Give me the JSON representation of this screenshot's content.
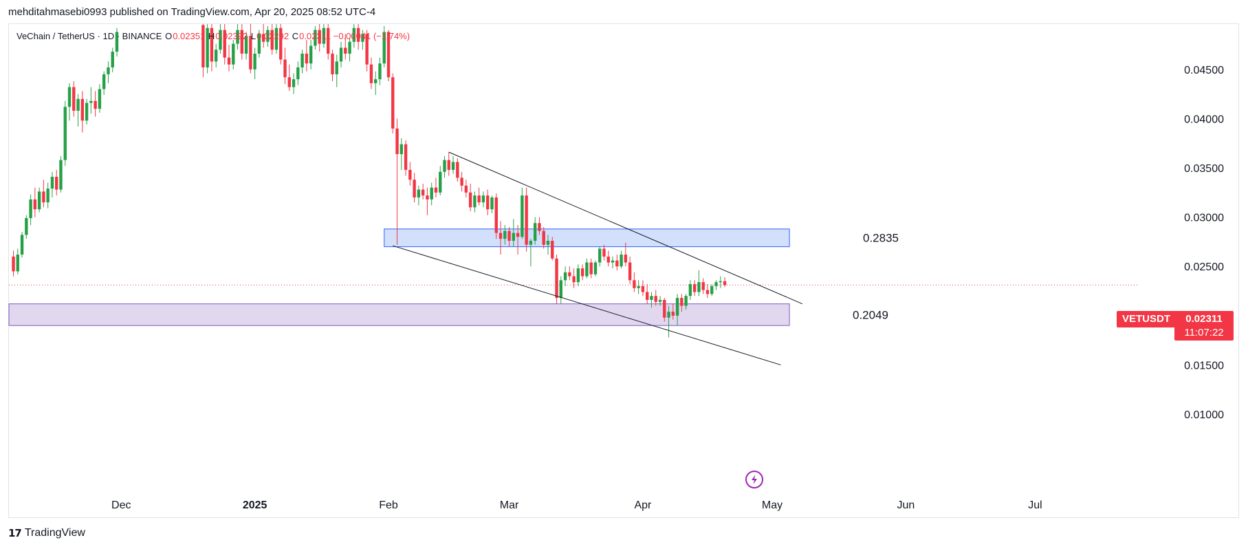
{
  "header": {
    "published": "mehditahmasebi0993 published on TradingView.com, Apr 20, 2025 08:52 UTC-4"
  },
  "legend": {
    "symbol_name": "VeChain / TetherUS · 1D · BINANCE",
    "o_label": "O",
    "o_value": "0.02351",
    "h_label": "H",
    "h_value": "0.02392",
    "l_label": "L",
    "l_value": "0.02292",
    "c_label": "C",
    "c_value": "0.02311",
    "change": "−0.00041 (−1.74%)"
  },
  "price_tag": {
    "ticker": "VETUSDT",
    "price": "0.02311",
    "countdown": "11:07:22"
  },
  "zone_labels": {
    "upper": "0.2835",
    "lower": "0.2049"
  },
  "footer": {
    "brand": "TradingView",
    "logo_text": "17"
  },
  "colors": {
    "up": "#26a047",
    "down": "#f23645",
    "upper_zone_fill": "#d2e0fb",
    "upper_zone_stroke": "#2962ff",
    "lower_zone_fill": "#e1d8f0",
    "lower_zone_stroke": "#7e57c2",
    "trendline": "#131722",
    "last_price_line": "#f23645",
    "flash_icon": "#9c27b0"
  },
  "icons": {
    "flash": "flash-icon"
  },
  "chart_data": {
    "type": "candlestick",
    "symbol": "VETUSDT",
    "interval": "1D",
    "exchange": "BINANCE",
    "y_axis": {
      "ticks": [
        0.045,
        0.04,
        0.035,
        0.03,
        0.025,
        0.02,
        0.015,
        0.01
      ],
      "tick_labels": [
        "0.04500",
        "0.04000",
        "0.03500",
        "0.03000",
        "0.02500",
        "0.02000",
        "0.01500",
        "0.01000"
      ],
      "range": [
        0.0063,
        0.0496
      ],
      "position": "right"
    },
    "x_axis": {
      "tick_labels": [
        "Dec",
        "2025",
        "Feb",
        "Mar",
        "Apr",
        "May",
        "Jun",
        "Jul"
      ],
      "tick_dates": [
        "2024-12-01",
        "2025-01-01",
        "2025-02-01",
        "2025-03-01",
        "2025-04-01",
        "2025-05-01",
        "2025-06-01",
        "2025-07-01"
      ]
    },
    "last_price": 0.02311,
    "zones": [
      {
        "name": "upper",
        "label": "0.2835",
        "from": "2025-01-31",
        "to": "2025-05-05",
        "low": 0.027,
        "high": 0.0288
      },
      {
        "name": "lower",
        "label": "0.2049",
        "from": "2024-11-01",
        "to": "2025-05-05",
        "low": 0.019,
        "high": 0.0212
      }
    ],
    "trendlines": [
      {
        "from": [
          "2025-02-15",
          0.0366
        ],
        "to": [
          "2025-05-08",
          0.0212
        ]
      },
      {
        "from": [
          "2025-02-02",
          0.0271
        ],
        "to": [
          "2025-05-03",
          0.015
        ]
      }
    ],
    "candles": [
      [
        "2024-11-01",
        0.0229,
        0.0245,
        0.0222,
        0.024
      ],
      [
        "2024-11-02",
        0.024,
        0.0258,
        0.0236,
        0.0253
      ],
      [
        "2024-11-03",
        0.0253,
        0.027,
        0.0248,
        0.0264
      ],
      [
        "2024-11-04",
        0.0264,
        0.0279,
        0.0256,
        0.0272
      ],
      [
        "2024-11-05",
        0.0272,
        0.028,
        0.0255,
        0.026
      ],
      [
        "2024-11-06",
        0.026,
        0.0266,
        0.024,
        0.0245
      ],
      [
        "2024-11-07",
        0.0245,
        0.0268,
        0.0242,
        0.0262
      ],
      [
        "2024-11-08",
        0.0262,
        0.0285,
        0.0259,
        0.0282
      ],
      [
        "2024-11-09",
        0.0282,
        0.0302,
        0.0278,
        0.0299
      ],
      [
        "2024-11-10",
        0.0299,
        0.0323,
        0.0292,
        0.0318
      ],
      [
        "2024-11-11",
        0.0318,
        0.033,
        0.03,
        0.0308
      ],
      [
        "2024-11-12",
        0.0308,
        0.033,
        0.0305,
        0.0326
      ],
      [
        "2024-11-13",
        0.0326,
        0.0338,
        0.031,
        0.0315
      ],
      [
        "2024-11-14",
        0.0315,
        0.0335,
        0.0309,
        0.0329
      ],
      [
        "2024-11-15",
        0.0329,
        0.0346,
        0.032,
        0.0341
      ],
      [
        "2024-11-16",
        0.0341,
        0.0348,
        0.0322,
        0.0328
      ],
      [
        "2024-11-17",
        0.0328,
        0.0362,
        0.0325,
        0.0358
      ],
      [
        "2024-11-18",
        0.0358,
        0.0418,
        0.0352,
        0.0412
      ],
      [
        "2024-11-19",
        0.0412,
        0.0436,
        0.0398,
        0.0432
      ],
      [
        "2024-11-20",
        0.0432,
        0.0438,
        0.0402,
        0.0408
      ],
      [
        "2024-11-21",
        0.0408,
        0.0425,
        0.0392,
        0.042
      ],
      [
        "2024-11-22",
        0.042,
        0.0428,
        0.0386,
        0.0398
      ],
      [
        "2024-11-23",
        0.0398,
        0.042,
        0.0394,
        0.0416
      ],
      [
        "2024-11-24",
        0.0416,
        0.0432,
        0.0405,
        0.0418
      ],
      [
        "2024-11-25",
        0.0418,
        0.0428,
        0.0402,
        0.041
      ],
      [
        "2024-11-26",
        0.041,
        0.0435,
        0.0406,
        0.043
      ],
      [
        "2024-11-27",
        0.043,
        0.0448,
        0.0424,
        0.0445
      ],
      [
        "2024-11-28",
        0.0445,
        0.0458,
        0.0436,
        0.0452
      ],
      [
        "2024-11-29",
        0.0452,
        0.0472,
        0.0447,
        0.0468
      ],
      [
        "2024-11-30",
        0.0468,
        0.0492,
        0.0463,
        0.0488
      ],
      [
        "2024-12-20",
        0.0495,
        0.0496,
        0.0442,
        0.0452
      ],
      [
        "2024-12-21",
        0.0452,
        0.0496,
        0.0446,
        0.0492
      ],
      [
        "2024-12-22",
        0.0492,
        0.0496,
        0.0448,
        0.0458
      ],
      [
        "2024-12-23",
        0.0458,
        0.0476,
        0.0452,
        0.047
      ],
      [
        "2024-12-24",
        0.047,
        0.0496,
        0.0466,
        0.049
      ],
      [
        "2024-12-25",
        0.049,
        0.0496,
        0.0455,
        0.0462
      ],
      [
        "2024-12-26",
        0.0462,
        0.0475,
        0.0448,
        0.0455
      ],
      [
        "2024-12-27",
        0.0455,
        0.048,
        0.045,
        0.0476
      ],
      [
        "2024-12-28",
        0.0476,
        0.0496,
        0.047,
        0.049
      ],
      [
        "2024-12-29",
        0.049,
        0.0496,
        0.046,
        0.0466
      ],
      [
        "2024-12-30",
        0.0466,
        0.0488,
        0.046,
        0.0484
      ],
      [
        "2024-12-31",
        0.0484,
        0.0496,
        0.0446,
        0.045
      ],
      [
        "2025-01-01",
        0.045,
        0.0472,
        0.044,
        0.0466
      ],
      [
        "2025-01-02",
        0.0466,
        0.049,
        0.0462,
        0.0486
      ],
      [
        "2025-01-03",
        0.0486,
        0.0496,
        0.0472,
        0.0478
      ],
      [
        "2025-01-04",
        0.0478,
        0.0494,
        0.0473,
        0.049
      ],
      [
        "2025-01-05",
        0.049,
        0.0496,
        0.0465,
        0.047
      ],
      [
        "2025-01-06",
        0.047,
        0.0496,
        0.0466,
        0.0492
      ],
      [
        "2025-01-07",
        0.0492,
        0.0496,
        0.0455,
        0.046
      ],
      [
        "2025-01-08",
        0.046,
        0.0472,
        0.0435,
        0.0442
      ],
      [
        "2025-01-09",
        0.0442,
        0.0455,
        0.0428,
        0.0432
      ],
      [
        "2025-01-10",
        0.0432,
        0.0446,
        0.0425,
        0.044
      ],
      [
        "2025-01-11",
        0.044,
        0.0458,
        0.0434,
        0.0452
      ],
      [
        "2025-01-12",
        0.0452,
        0.047,
        0.0446,
        0.0466
      ],
      [
        "2025-01-13",
        0.0466,
        0.048,
        0.0448,
        0.0456
      ],
      [
        "2025-01-14",
        0.0456,
        0.048,
        0.045,
        0.0474
      ],
      [
        "2025-01-15",
        0.0474,
        0.0494,
        0.047,
        0.049
      ],
      [
        "2025-01-16",
        0.049,
        0.0496,
        0.0468,
        0.0476
      ],
      [
        "2025-01-17",
        0.0476,
        0.0496,
        0.0472,
        0.0492
      ],
      [
        "2025-01-18",
        0.0492,
        0.0496,
        0.046,
        0.0466
      ],
      [
        "2025-01-19",
        0.0466,
        0.047,
        0.0438,
        0.0445
      ],
      [
        "2025-01-20",
        0.0445,
        0.0465,
        0.0432,
        0.0458
      ],
      [
        "2025-01-21",
        0.0458,
        0.0478,
        0.0452,
        0.0472
      ],
      [
        "2025-01-22",
        0.0472,
        0.0486,
        0.046,
        0.0466
      ],
      [
        "2025-01-23",
        0.0466,
        0.0482,
        0.0458,
        0.0478
      ],
      [
        "2025-01-24",
        0.0478,
        0.0496,
        0.0472,
        0.0492
      ],
      [
        "2025-01-25",
        0.0492,
        0.0496,
        0.047,
        0.0478
      ],
      [
        "2025-01-26",
        0.0478,
        0.049,
        0.047,
        0.0486
      ],
      [
        "2025-01-27",
        0.0486,
        0.049,
        0.0448,
        0.0455
      ],
      [
        "2025-01-28",
        0.0455,
        0.0462,
        0.043,
        0.0436
      ],
      [
        "2025-01-29",
        0.0436,
        0.0448,
        0.0424,
        0.044
      ],
      [
        "2025-01-30",
        0.044,
        0.0462,
        0.0434,
        0.0456
      ],
      [
        "2025-01-31",
        0.0456,
        0.0494,
        0.0452,
        0.0488
      ],
      [
        "2025-02-01",
        0.0488,
        0.049,
        0.0438,
        0.0442
      ],
      [
        "2025-02-02",
        0.0442,
        0.0446,
        0.0385,
        0.039
      ],
      [
        "2025-02-03",
        0.039,
        0.04,
        0.0272,
        0.0364
      ],
      [
        "2025-02-04",
        0.0364,
        0.038,
        0.0348,
        0.0374
      ],
      [
        "2025-02-05",
        0.0374,
        0.0378,
        0.0342,
        0.0348
      ],
      [
        "2025-02-06",
        0.0348,
        0.0356,
        0.0332,
        0.0338
      ],
      [
        "2025-02-07",
        0.0338,
        0.0345,
        0.0315,
        0.032
      ],
      [
        "2025-02-08",
        0.032,
        0.0332,
        0.0312,
        0.0328
      ],
      [
        "2025-02-09",
        0.0328,
        0.0334,
        0.0318,
        0.0322
      ],
      [
        "2025-02-10",
        0.0322,
        0.033,
        0.0302,
        0.0318
      ],
      [
        "2025-02-11",
        0.0318,
        0.0335,
        0.0312,
        0.033
      ],
      [
        "2025-02-12",
        0.033,
        0.034,
        0.032,
        0.0325
      ],
      [
        "2025-02-13",
        0.0325,
        0.0352,
        0.0322,
        0.0346
      ],
      [
        "2025-02-14",
        0.0346,
        0.0362,
        0.034,
        0.0358
      ],
      [
        "2025-02-15",
        0.0358,
        0.0366,
        0.0342,
        0.0348
      ],
      [
        "2025-02-16",
        0.0348,
        0.0362,
        0.0344,
        0.0356
      ],
      [
        "2025-02-17",
        0.0356,
        0.036,
        0.0336,
        0.034
      ],
      [
        "2025-02-18",
        0.034,
        0.0346,
        0.0326,
        0.0332
      ],
      [
        "2025-02-19",
        0.0332,
        0.0338,
        0.032,
        0.0325
      ],
      [
        "2025-02-20",
        0.0325,
        0.0334,
        0.0306,
        0.031
      ],
      [
        "2025-02-21",
        0.031,
        0.0326,
        0.0305,
        0.0322
      ],
      [
        "2025-02-22",
        0.0322,
        0.033,
        0.0312,
        0.0315
      ],
      [
        "2025-02-23",
        0.0315,
        0.0326,
        0.031,
        0.0322
      ],
      [
        "2025-02-24",
        0.0322,
        0.0328,
        0.0302,
        0.0308
      ],
      [
        "2025-02-25",
        0.0308,
        0.0322,
        0.0304,
        0.032
      ],
      [
        "2025-02-26",
        0.032,
        0.0324,
        0.0278,
        0.0284
      ],
      [
        "2025-02-27",
        0.0284,
        0.0296,
        0.0262,
        0.0278
      ],
      [
        "2025-02-28",
        0.0278,
        0.0292,
        0.0272,
        0.0286
      ],
      [
        "2025-03-01",
        0.0286,
        0.029,
        0.027,
        0.0276
      ],
      [
        "2025-03-02",
        0.0276,
        0.0298,
        0.027,
        0.0284
      ],
      [
        "2025-03-03",
        0.0284,
        0.0292,
        0.0262,
        0.028
      ],
      [
        "2025-03-04",
        0.028,
        0.033,
        0.0278,
        0.0322
      ],
      [
        "2025-03-05",
        0.0322,
        0.033,
        0.0265,
        0.0272
      ],
      [
        "2025-03-06",
        0.0272,
        0.0278,
        0.025,
        0.0276
      ],
      [
        "2025-03-07",
        0.0276,
        0.03,
        0.0272,
        0.0294
      ],
      [
        "2025-03-08",
        0.0294,
        0.03,
        0.0282,
        0.0286
      ],
      [
        "2025-03-09",
        0.0286,
        0.029,
        0.0268,
        0.0272
      ],
      [
        "2025-03-10",
        0.0272,
        0.0282,
        0.0262,
        0.0276
      ],
      [
        "2025-03-11",
        0.0276,
        0.028,
        0.0256,
        0.0258
      ],
      [
        "2025-03-12",
        0.0258,
        0.0262,
        0.0212,
        0.0218
      ],
      [
        "2025-03-13",
        0.0218,
        0.024,
        0.0212,
        0.0236
      ],
      [
        "2025-03-14",
        0.0236,
        0.025,
        0.023,
        0.0244
      ],
      [
        "2025-03-15",
        0.0244,
        0.025,
        0.0236,
        0.024
      ],
      [
        "2025-03-16",
        0.024,
        0.0248,
        0.0228,
        0.0234
      ],
      [
        "2025-03-17",
        0.0234,
        0.0252,
        0.023,
        0.0248
      ],
      [
        "2025-03-18",
        0.0248,
        0.0252,
        0.0236,
        0.024
      ],
      [
        "2025-03-19",
        0.024,
        0.0258,
        0.0238,
        0.0254
      ],
      [
        "2025-03-20",
        0.0254,
        0.0258,
        0.0238,
        0.0242
      ],
      [
        "2025-03-21",
        0.0242,
        0.0256,
        0.024,
        0.0254
      ],
      [
        "2025-03-22",
        0.0254,
        0.027,
        0.025,
        0.0268
      ],
      [
        "2025-03-23",
        0.0268,
        0.0272,
        0.0256,
        0.026
      ],
      [
        "2025-03-24",
        0.026,
        0.0266,
        0.025,
        0.0254
      ],
      [
        "2025-03-25",
        0.0254,
        0.026,
        0.0248,
        0.0256
      ],
      [
        "2025-03-26",
        0.0256,
        0.0262,
        0.0246,
        0.025
      ],
      [
        "2025-03-27",
        0.025,
        0.0266,
        0.0248,
        0.0262
      ],
      [
        "2025-03-28",
        0.0262,
        0.0274,
        0.025,
        0.0254
      ],
      [
        "2025-03-29",
        0.0254,
        0.026,
        0.0232,
        0.0236
      ],
      [
        "2025-03-30",
        0.0236,
        0.0244,
        0.0224,
        0.0228
      ],
      [
        "2025-03-31",
        0.0228,
        0.0236,
        0.0222,
        0.023
      ],
      [
        "2025-04-01",
        0.023,
        0.0236,
        0.022,
        0.0224
      ],
      [
        "2025-04-02",
        0.0224,
        0.0232,
        0.0212,
        0.0216
      ],
      [
        "2025-04-03",
        0.0216,
        0.0224,
        0.0208,
        0.022
      ],
      [
        "2025-04-04",
        0.022,
        0.0226,
        0.021,
        0.0214
      ],
      [
        "2025-04-05",
        0.0214,
        0.022,
        0.021,
        0.0216
      ],
      [
        "2025-04-06",
        0.0216,
        0.0218,
        0.0194,
        0.0198
      ],
      [
        "2025-04-07",
        0.0198,
        0.021,
        0.0178,
        0.0204
      ],
      [
        "2025-04-08",
        0.0204,
        0.0212,
        0.0196,
        0.02
      ],
      [
        "2025-04-09",
        0.02,
        0.0222,
        0.019,
        0.0218
      ],
      [
        "2025-04-10",
        0.0218,
        0.0222,
        0.0204,
        0.021
      ],
      [
        "2025-04-11",
        0.021,
        0.0222,
        0.0206,
        0.022
      ],
      [
        "2025-04-12",
        0.022,
        0.0236,
        0.0216,
        0.0232
      ],
      [
        "2025-04-13",
        0.0232,
        0.0236,
        0.022,
        0.0224
      ],
      [
        "2025-04-14",
        0.0224,
        0.0246,
        0.022,
        0.0234
      ],
      [
        "2025-04-15",
        0.0234,
        0.0238,
        0.0222,
        0.0226
      ],
      [
        "2025-04-16",
        0.0226,
        0.0232,
        0.0218,
        0.0222
      ],
      [
        "2025-04-17",
        0.0222,
        0.0232,
        0.022,
        0.023
      ],
      [
        "2025-04-18",
        0.023,
        0.0236,
        0.0226,
        0.0234
      ],
      [
        "2025-04-19",
        0.0234,
        0.024,
        0.0228,
        0.0235
      ],
      [
        "2025-04-20",
        0.0235,
        0.0239,
        0.0229,
        0.0231
      ]
    ]
  }
}
